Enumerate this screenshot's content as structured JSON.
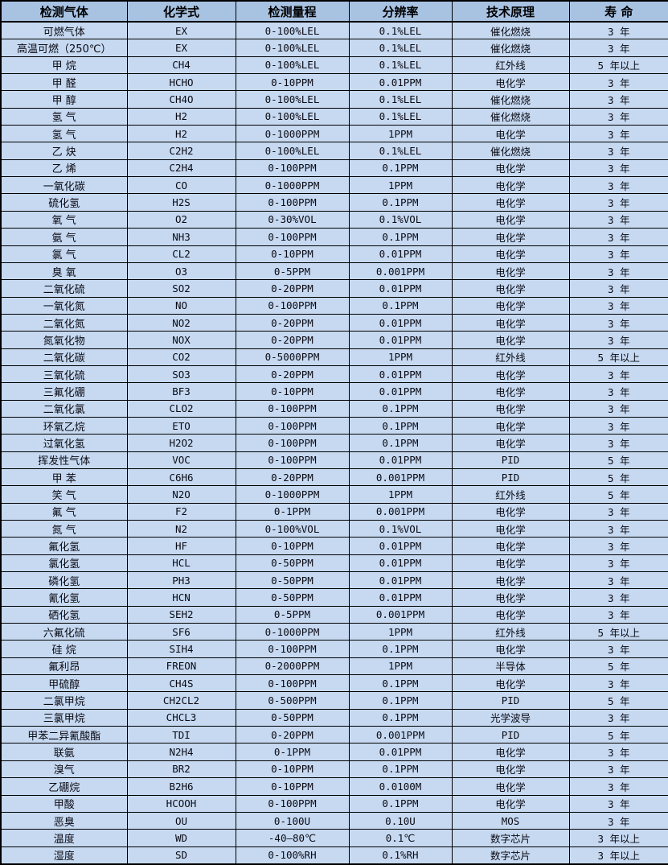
{
  "colors": {
    "header_bg": "#a8c2e2",
    "row_bg": "#c6d9f1",
    "border": "#000000",
    "text": "#000000"
  },
  "table": {
    "header": {
      "gas": "检测气体",
      "formula": "化学式",
      "range": "检测量程",
      "resolution": "分辨率",
      "principle": "技术原理",
      "lifespan": "寿 命"
    },
    "rows": [
      [
        "可燃气体",
        "EX",
        "0-100%LEL",
        "0.1%LEL",
        "催化燃烧",
        "3 年"
      ],
      [
        "高温可燃（250℃）",
        "EX",
        "0-100%LEL",
        "0.1%LEL",
        "催化燃烧",
        "3 年"
      ],
      [
        "甲 烷",
        "CH4",
        "0-100%LEL",
        "0.1%LEL",
        "红外线",
        "5 年以上"
      ],
      [
        "甲 醛",
        "HCHO",
        "0-10PPM",
        "0.01PPM",
        "电化学",
        "3 年"
      ],
      [
        "甲 醇",
        "CH4O",
        "0-100%LEL",
        "0.1%LEL",
        "催化燃烧",
        "3 年"
      ],
      [
        "氢 气",
        "H2",
        "0-100%LEL",
        "0.1%LEL",
        "催化燃烧",
        "3 年"
      ],
      [
        "氢 气",
        "H2",
        "0-1000PPM",
        "1PPM",
        "电化学",
        "3 年"
      ],
      [
        "乙 炔",
        "C2H2",
        "0-100%LEL",
        "0.1%LEL",
        "催化燃烧",
        "3 年"
      ],
      [
        "乙 烯",
        "C2H4",
        "0-100PPM",
        "0.1PPM",
        "电化学",
        "3 年"
      ],
      [
        "一氧化碳",
        "CO",
        "0-1000PPM",
        "1PPM",
        "电化学",
        "3 年"
      ],
      [
        "硫化氢",
        "H2S",
        "0-100PPM",
        "0.1PPM",
        "电化学",
        "3 年"
      ],
      [
        "氧 气",
        "O2",
        "0-30%VOL",
        "0.1%VOL",
        "电化学",
        "3 年"
      ],
      [
        "氨 气",
        "NH3",
        "0-100PPM",
        "0.1PPM",
        "电化学",
        "3 年"
      ],
      [
        "氯 气",
        "CL2",
        "0-10PPM",
        "0.01PPM",
        "电化学",
        "3 年"
      ],
      [
        "臭 氧",
        "O3",
        "0-5PPM",
        "0.001PPM",
        "电化学",
        "3 年"
      ],
      [
        "二氧化硫",
        "SO2",
        "0-20PPM",
        "0.01PPM",
        "电化学",
        "3 年"
      ],
      [
        "一氧化氮",
        "NO",
        "0-100PPM",
        "0.1PPM",
        "电化学",
        "3 年"
      ],
      [
        "二氧化氮",
        "NO2",
        "0-20PPM",
        "0.01PPM",
        "电化学",
        "3 年"
      ],
      [
        "氮氧化物",
        "NOX",
        "0-20PPM",
        "0.01PPM",
        "电化学",
        "3 年"
      ],
      [
        "二氧化碳",
        "CO2",
        "0-5000PPM",
        "1PPM",
        "红外线",
        "5 年以上"
      ],
      [
        "三氧化硫",
        "SO3",
        "0-20PPM",
        "0.01PPM",
        "电化学",
        "3 年"
      ],
      [
        "三氟化硼",
        "BF3",
        "0-10PPM",
        "0.01PPM",
        "电化学",
        "3 年"
      ],
      [
        "二氧化氯",
        "CLO2",
        "0-100PPM",
        "0.1PPM",
        "电化学",
        "3 年"
      ],
      [
        "环氧乙烷",
        "ETO",
        "0-100PPM",
        "0.1PPM",
        "电化学",
        "3 年"
      ],
      [
        "过氧化氢",
        "H2O2",
        "0-100PPM",
        "0.1PPM",
        "电化学",
        "3 年"
      ],
      [
        "挥发性气体",
        "VOC",
        "0-100PPM",
        "0.01PPM",
        "PID",
        "5 年"
      ],
      [
        "甲 苯",
        "C6H6",
        "0-20PPM",
        "0.001PPM",
        "PID",
        "5 年"
      ],
      [
        "笑 气",
        "N2O",
        "0-1000PPM",
        "1PPM",
        "红外线",
        "5 年"
      ],
      [
        "氟 气",
        "F2",
        "0-1PPM",
        "0.001PPM",
        "电化学",
        "3 年"
      ],
      [
        "氮 气",
        "N2",
        "0-100%VOL",
        "0.1%VOL",
        "电化学",
        "3 年"
      ],
      [
        "氟化氢",
        "HF",
        "0-10PPM",
        "0.01PPM",
        "电化学",
        "3 年"
      ],
      [
        "氯化氢",
        "HCL",
        "0-50PPM",
        "0.01PPM",
        "电化学",
        "3 年"
      ],
      [
        "磷化氢",
        "PH3",
        "0-50PPM",
        "0.01PPM",
        "电化学",
        "3 年"
      ],
      [
        "氰化氢",
        "HCN",
        "0-50PPM",
        "0.01PPM",
        "电化学",
        "3 年"
      ],
      [
        "硒化氢",
        "SEH2",
        "0-5PPM",
        "0.001PPM",
        "电化学",
        "3 年"
      ],
      [
        "六氟化硫",
        "SF6",
        "0-1000PPM",
        "1PPM",
        "红外线",
        "5 年以上"
      ],
      [
        "硅 烷",
        "SIH4",
        "0-100PPM",
        "0.1PPM",
        "电化学",
        "3 年"
      ],
      [
        "氟利昂",
        "FREON",
        "0-2000PPM",
        "1PPM",
        "半导体",
        "5 年"
      ],
      [
        "甲硫醇",
        "CH4S",
        "0-100PPM",
        "0.1PPM",
        "电化学",
        "3 年"
      ],
      [
        "二氯甲烷",
        "CH2CL2",
        "0-500PPM",
        "0.1PPM",
        "PID",
        "5 年"
      ],
      [
        "三氯甲烷",
        "CHCL3",
        "0-50PPM",
        "0.1PPM",
        "光学波导",
        "3 年"
      ],
      [
        "甲苯二异氰酸酯",
        "TDI",
        "0-20PPM",
        "0.001PPM",
        "PID",
        "5 年"
      ],
      [
        "联氨",
        "N2H4",
        "0-1PPM",
        "0.01PPM",
        "电化学",
        "3 年"
      ],
      [
        "溴气",
        "BR2",
        "0-10PPM",
        "0.1PPM",
        "电化学",
        "3 年"
      ],
      [
        "乙硼烷",
        "B2H6",
        "0-10PPM",
        "0.0100M",
        "电化学",
        "3 年"
      ],
      [
        "甲酸",
        "HCOOH",
        "0-100PPM",
        "0.1PPM",
        "电化学",
        "3 年"
      ],
      [
        "恶臭",
        "OU",
        "0-100U",
        "0.10U",
        "MOS",
        "3 年"
      ],
      [
        "温度",
        "WD",
        "-40—80℃",
        "0.1℃",
        "数字芯片",
        "3 年以上"
      ],
      [
        "湿度",
        "SD",
        "0-100%RH",
        "0.1%RH",
        "数字芯片",
        "3 年以上"
      ]
    ]
  }
}
